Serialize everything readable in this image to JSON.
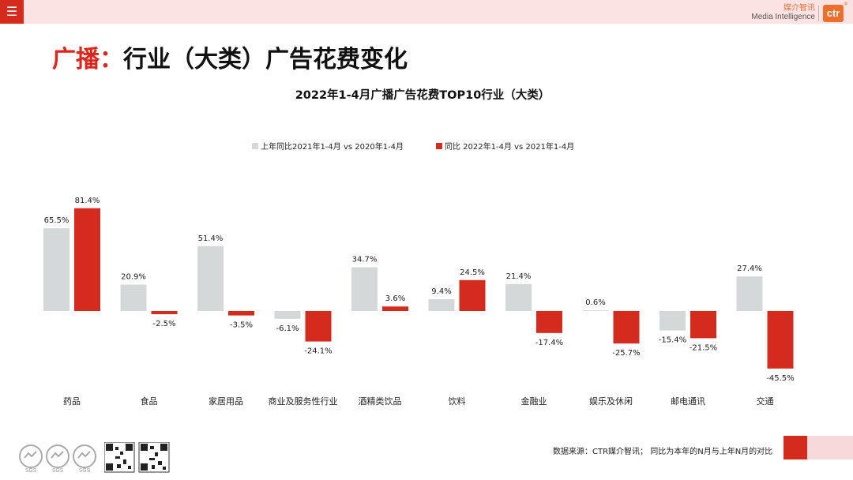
{
  "header": {
    "menu_icon": "hamburger-menu-icon",
    "brand_cn": "媒介智讯",
    "brand_en": "Media Intelligence",
    "logo_text": "ctr",
    "logo_mark": "®"
  },
  "page": {
    "title_highlight": "广播：",
    "title_rest": "行业（大类）广告花费变化"
  },
  "chart_data": {
    "type": "bar",
    "title": "2022年1-4月广播广告花费TOP10行业（大类）",
    "xlabel": "",
    "ylabel": "",
    "legend_position": "top-center",
    "categories": [
      "药品",
      "食品",
      "家居用品",
      "商业及服务性行业",
      "酒精类饮品",
      "饮料",
      "金融业",
      "娱乐及休闲",
      "邮电通讯",
      "交通"
    ],
    "series": [
      {
        "name": "上年同比2021年1-4月  vs  2020年1-4月",
        "color": "#d5d8d9",
        "values": [
          65.5,
          20.9,
          51.4,
          -6.1,
          34.7,
          9.4,
          21.4,
          0.6,
          -15.4,
          27.4
        ],
        "labels": [
          "65.5%",
          "20.9%",
          "51.4%",
          "-6.1%",
          "34.7%",
          "9.4%",
          "21.4%",
          "0.6%",
          "-15.4%",
          "27.4%"
        ]
      },
      {
        "name": "同比 2022年1-4月  vs  2021年1-4月",
        "color": "#d42b1e",
        "values": [
          81.4,
          -2.5,
          -3.5,
          -24.1,
          3.6,
          24.5,
          -17.4,
          -25.7,
          -21.5,
          -45.5
        ],
        "labels": [
          "81.4%",
          "-2.5%",
          "-3.5%",
          "-24.1%",
          "3.6%",
          "24.5%",
          "-17.4%",
          "-25.7%",
          "-21.5%",
          "-45.5%"
        ]
      }
    ],
    "ylim": [
      -50,
      90
    ],
    "grid": false
  },
  "footer": {
    "source_note": "数据来源：CTR媒介智讯；  同比为本年的N月与上年N月的对比",
    "badges": [
      "SGS",
      "SGS",
      "SGS"
    ]
  }
}
